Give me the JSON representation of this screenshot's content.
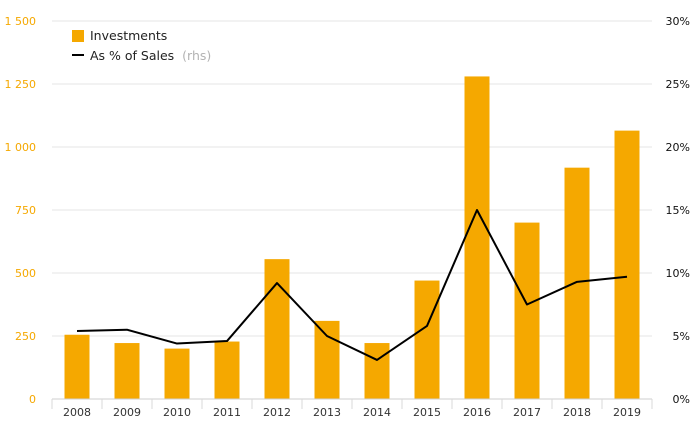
{
  "chart_data": {
    "type": "bar",
    "categories": [
      "2008",
      "2009",
      "2010",
      "2011",
      "2012",
      "2013",
      "2014",
      "2015",
      "2016",
      "2017",
      "2018",
      "2019"
    ],
    "series": [
      {
        "name": "Investments",
        "type": "bar",
        "axis": "left",
        "color": "#F5A800",
        "values": [
          255,
          222,
          200,
          228,
          555,
          310,
          222,
          470,
          1280,
          700,
          918,
          1065
        ]
      },
      {
        "name": "As % of Sales",
        "name_suffix": "(rhs)",
        "type": "line",
        "axis": "right",
        "color": "#000000",
        "values": [
          5.4,
          5.5,
          4.4,
          4.6,
          9.2,
          5.0,
          3.1,
          5.8,
          15.0,
          7.5,
          9.3,
          9.7
        ]
      }
    ],
    "y_left": {
      "ylim": [
        0,
        1500
      ],
      "ticks": [
        0,
        250,
        500,
        750,
        1000,
        1250,
        1500
      ],
      "tick_labels": [
        "0",
        "250",
        "500",
        "750",
        "1 000",
        "1 250",
        "1 500"
      ],
      "color": "#F5A800"
    },
    "y_right": {
      "ylim": [
        0,
        30
      ],
      "ticks": [
        0,
        5,
        10,
        15,
        20,
        25,
        30
      ],
      "tick_labels": [
        "0%",
        "5%",
        "10%",
        "15%",
        "20%",
        "25%",
        "30%"
      ]
    },
    "grid": true,
    "legend_position": "top-left",
    "title": "",
    "xlabel": "",
    "ylabel": ""
  }
}
